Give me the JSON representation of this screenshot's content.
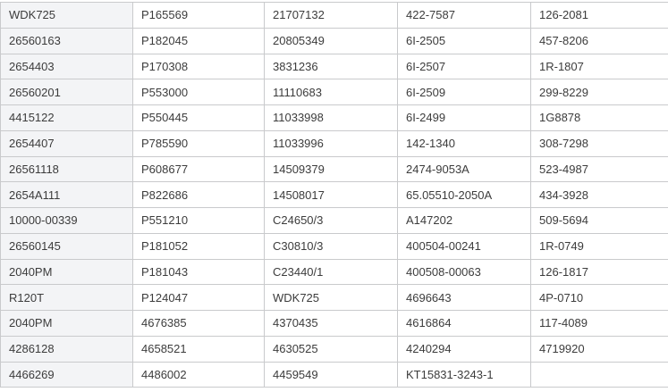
{
  "colors": {
    "first_column_bg": "#f3f4f6",
    "cell_bg": "#ffffff",
    "border": "#c9cacc",
    "text": "#3c3c3c"
  },
  "table": {
    "column_count": 5,
    "rows": [
      [
        "WDK725",
        "P165569",
        "21707132",
        "422-7587",
        "126-2081"
      ],
      [
        "26560163",
        "P182045",
        "20805349",
        "6I-2505",
        "457-8206"
      ],
      [
        "2654403",
        "P170308",
        "3831236",
        "6I-2507",
        "1R-1807"
      ],
      [
        "26560201",
        "P553000",
        "11110683",
        "6I-2509",
        "299-8229"
      ],
      [
        "4415122",
        "P550445",
        "11033998",
        "6I-2499",
        "1G8878"
      ],
      [
        "2654407",
        "P785590",
        "11033996",
        "142-1340",
        "308-7298"
      ],
      [
        "26561118",
        "P608677",
        "14509379",
        "2474-9053A",
        "523-4987"
      ],
      [
        "2654A111",
        "P822686",
        "14508017",
        "65.05510-2050A",
        "434-3928"
      ],
      [
        "10000-00339",
        "P551210",
        "C24650/3",
        "A147202",
        "509-5694"
      ],
      [
        "26560145",
        "P181052",
        "C30810/3",
        "400504-00241",
        "1R-0749"
      ],
      [
        "2040PM",
        "P181043",
        "C23440/1",
        "400508-00063",
        "126-1817"
      ],
      [
        "R120T",
        "P124047",
        "WDK725",
        "4696643",
        "4P-0710"
      ],
      [
        "2040PM",
        "4676385",
        "4370435",
        "4616864",
        "117-4089"
      ],
      [
        "4286128",
        "4658521",
        "4630525",
        "4240294",
        "4719920"
      ],
      [
        "4466269",
        "4486002",
        "4459549",
        "KT15831-3243-1",
        ""
      ]
    ]
  }
}
